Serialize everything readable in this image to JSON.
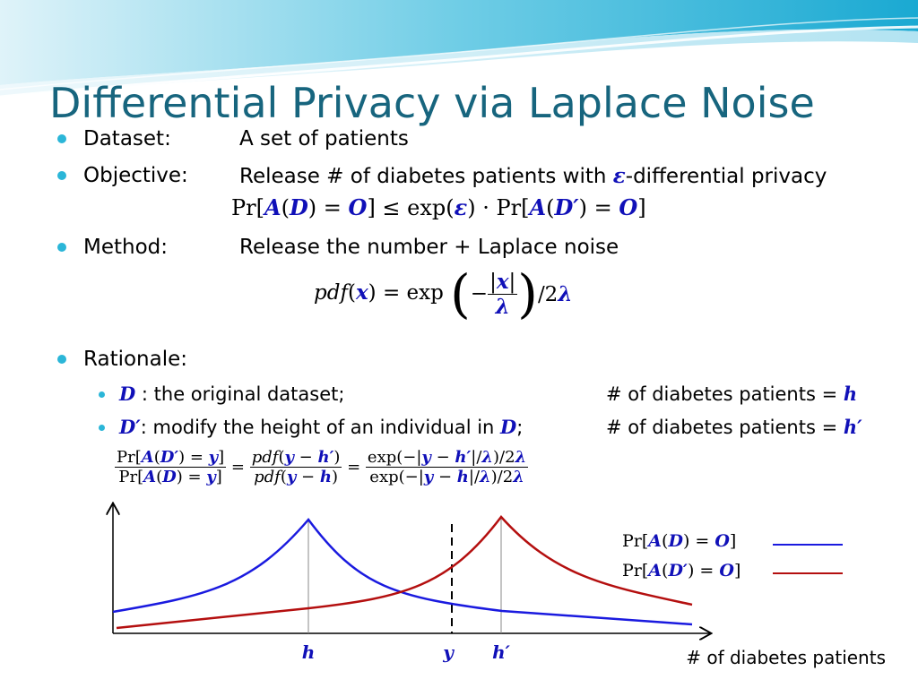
{
  "slide": {
    "title": "Differential Privacy via Laplace Noise",
    "bullets": {
      "dataset": {
        "label": "Dataset:",
        "value": "A set of patients"
      },
      "objective": {
        "label": "Objective:",
        "value_pre": "Release # of diabetes patients with ",
        "epsilon": "ε",
        "value_post": "-differential privacy"
      },
      "method": {
        "label": "Method:",
        "value": "Release the number + Laplace noise"
      },
      "rationale": {
        "label": "Rationale:"
      }
    },
    "sub_bullets": {
      "d": {
        "var": "D",
        "text": " : the original dataset;",
        "right_text": "# of diabetes patients = ",
        "right_var": "h"
      },
      "dprime": {
        "var": "D′",
        "text_pre": ": modify the height of an individual in ",
        "var2": "D",
        "text_post": ";",
        "right_text": "# of diabetes patients = ",
        "right_var": "h′"
      }
    }
  },
  "chart_data": {
    "type": "line",
    "x_axis_label": "# of diabetes patients",
    "markers": [
      {
        "label": "h",
        "position": "peak of blue curve"
      },
      {
        "label": "y",
        "position": "dashed line"
      },
      {
        "label": "h′",
        "position": "peak of red curve"
      }
    ],
    "series": [
      {
        "legend": "Pr[A(D) = O]",
        "color": "#1a1adf",
        "peak_label": "h"
      },
      {
        "legend": "Pr[A(D′) = O]",
        "color": "#b40f0f",
        "peak_label": "h′"
      }
    ],
    "grid": false,
    "legend_position": "top-right"
  },
  "colors": {
    "title": "#17657e",
    "bullet": "#2bb6d8",
    "variable": "#1010b8",
    "blue_curve": "#1a1adf",
    "red_curve": "#b40f0f"
  }
}
